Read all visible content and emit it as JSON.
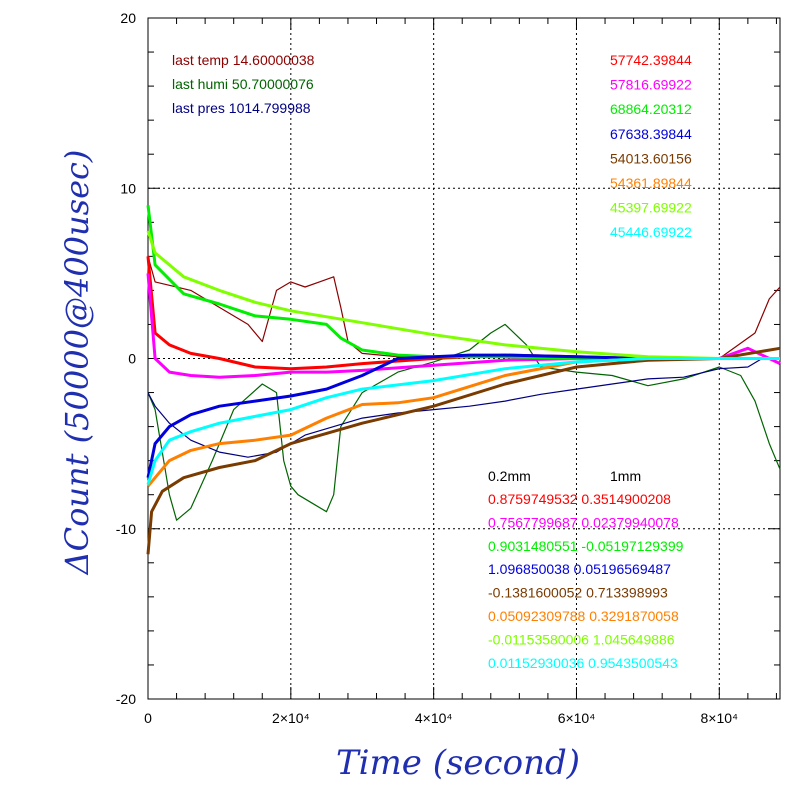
{
  "chart_data": {
    "type": "line",
    "xlabel": "Time (second)",
    "ylabel": "ΔCount (50000@400usec)",
    "xlim": [
      0,
      88500
    ],
    "ylim": [
      -20,
      20
    ],
    "x_ticks": [
      {
        "value": 0,
        "label": "0"
      },
      {
        "value": 20000,
        "label": "2×10⁴"
      },
      {
        "value": 40000,
        "label": "4×10⁴"
      },
      {
        "value": 60000,
        "label": "6×10⁴"
      },
      {
        "value": 80000,
        "label": "8×10⁴"
      }
    ],
    "y_ticks": [
      {
        "value": -20,
        "label": "-20"
      },
      {
        "value": -10,
        "label": "-10"
      },
      {
        "value": 0,
        "label": "0"
      },
      {
        "value": 10,
        "label": "10"
      },
      {
        "value": 20,
        "label": "20"
      }
    ],
    "grid": true,
    "env_annotations": [
      {
        "text": "last temp 14.60000038",
        "color": "#8b0000"
      },
      {
        "text": "last humi 50.70000076",
        "color": "#006400"
      },
      {
        "text": "last pres 1014.799988",
        "color": "#000080"
      }
    ],
    "count_annotations": [
      {
        "text": "57742.39844",
        "color": "#ff0000"
      },
      {
        "text": "57816.69922",
        "color": "#ff00ff"
      },
      {
        "text": "68864.20312",
        "color": "#00ee00"
      },
      {
        "text": "67638.39844",
        "color": "#0000dd"
      },
      {
        "text": "54013.60156",
        "color": "#7a3b00"
      },
      {
        "text": "54361.89844",
        "color": "#ff8000"
      },
      {
        "text": "45397.69922",
        "color": "#7fff00"
      },
      {
        "text": "45446.69922",
        "color": "#00ffff"
      }
    ],
    "coef_header": [
      "0.2mm",
      "1mm"
    ],
    "coef_annotations": [
      {
        "text": "0.8759749532 0.3514900208",
        "color": "#ff0000"
      },
      {
        "text": "0.7567799687 0.02379940078",
        "color": "#ff00ff"
      },
      {
        "text": "0.9031480551 -0.05197129399",
        "color": "#00ee00"
      },
      {
        "text": "1.096850038 0.05196569487",
        "color": "#0000dd"
      },
      {
        "text": "-0.1381600052 0.713398993",
        "color": "#7a3b00"
      },
      {
        "text": "0.05092309788 0.3291870058",
        "color": "#ff8000"
      },
      {
        "text": "-0.01153580006 1.045649886",
        "color": "#7fff00"
      },
      {
        "text": "0.01152930036 0.9543500543",
        "color": "#00ffff"
      }
    ],
    "series": [
      {
        "color": "#ff0000",
        "thick": true,
        "x": [
          0,
          1000,
          3000,
          6000,
          10000,
          15000,
          20000,
          25000,
          30000,
          40000,
          50000,
          60000,
          70000,
          80000,
          88500
        ],
        "y": [
          6,
          1.5,
          0.8,
          0.3,
          0,
          -0.5,
          -0.6,
          -0.5,
          -0.3,
          0,
          0.2,
          0.1,
          0,
          0,
          0
        ]
      },
      {
        "color": "#ff00ff",
        "thick": true,
        "x": [
          0,
          1000,
          3000,
          6000,
          10000,
          15000,
          20000,
          25000,
          30000,
          40000,
          50000,
          60000,
          70000,
          80000,
          84000,
          88500
        ],
        "y": [
          5,
          0,
          -0.8,
          -1,
          -1.1,
          -1,
          -0.8,
          -0.8,
          -0.7,
          -0.4,
          -0.1,
          0,
          0,
          0,
          0.6,
          -0.3
        ]
      },
      {
        "color": "#00ee00",
        "thick": true,
        "x": [
          0,
          1000,
          5000,
          10000,
          15000,
          20000,
          25000,
          27000,
          30000,
          35000,
          40000,
          50000,
          60000,
          70000,
          80000,
          88500
        ],
        "y": [
          9,
          5.5,
          3.8,
          3.2,
          2.5,
          2.3,
          2,
          1.2,
          0.5,
          0.2,
          0.1,
          0.1,
          0,
          0,
          0,
          0
        ]
      },
      {
        "color": "#0000dd",
        "thick": true,
        "x": [
          0,
          1000,
          3000,
          6000,
          10000,
          15000,
          20000,
          25000,
          30000,
          35000,
          40000,
          45000,
          50000,
          60000,
          70000,
          80000,
          88500
        ],
        "y": [
          -7,
          -5,
          -4,
          -3.3,
          -2.8,
          -2.5,
          -2.2,
          -1.8,
          -1,
          0,
          0.1,
          0.2,
          0.2,
          0.1,
          0,
          0,
          0
        ]
      },
      {
        "color": "#7a3b00",
        "thick": true,
        "x": [
          0,
          500,
          2000,
          5000,
          10000,
          15000,
          20000,
          25000,
          30000,
          40000,
          50000,
          60000,
          70000,
          80000,
          88500
        ],
        "y": [
          -11.5,
          -9,
          -7.8,
          -7,
          -6.4,
          -6,
          -5,
          -4.4,
          -3.8,
          -2.8,
          -1.5,
          -0.5,
          -0.1,
          0,
          0.6
        ]
      },
      {
        "color": "#ff8000",
        "thick": true,
        "x": [
          0,
          1000,
          3000,
          6000,
          10000,
          15000,
          20000,
          25000,
          30000,
          35000,
          40000,
          50000,
          60000,
          70000,
          80000,
          88500
        ],
        "y": [
          -7.5,
          -7,
          -6,
          -5.4,
          -5,
          -4.8,
          -4.5,
          -3.5,
          -2.7,
          -2.6,
          -2.3,
          -1,
          -0.2,
          0,
          0,
          0
        ]
      },
      {
        "color": "#7fff00",
        "thick": true,
        "x": [
          0,
          1000,
          5000,
          10000,
          15000,
          20000,
          30000,
          40000,
          50000,
          60000,
          70000,
          80000,
          88500
        ],
        "y": [
          7.5,
          6.2,
          4.8,
          4,
          3.3,
          2.8,
          2.1,
          1.4,
          0.8,
          0.4,
          0.1,
          0,
          0
        ]
      },
      {
        "color": "#00ffff",
        "thick": true,
        "x": [
          0,
          1000,
          3000,
          6000,
          10000,
          15000,
          20000,
          25000,
          30000,
          40000,
          50000,
          60000,
          70000,
          80000,
          88500
        ],
        "y": [
          -7.4,
          -6,
          -4.8,
          -4.3,
          -3.8,
          -3.4,
          -3,
          -2.3,
          -1.8,
          -1.3,
          -0.6,
          -0.2,
          0,
          0,
          0
        ]
      },
      {
        "color": "#8b0000",
        "thick": false,
        "x": [
          0,
          1000,
          3000,
          6000,
          10000,
          14000,
          16000,
          18000,
          20000,
          22000,
          24000,
          26000,
          27000,
          28000,
          30000,
          35000,
          40000,
          50000,
          60000,
          70000,
          80000,
          85000,
          87000,
          88500
        ],
        "y": [
          6,
          4.5,
          4.3,
          4,
          3,
          2,
          1,
          4,
          4.5,
          4.2,
          4.5,
          4.8,
          3,
          1,
          0.3,
          0.1,
          0.1,
          0.2,
          0.1,
          0,
          0,
          1.5,
          3.5,
          4.2
        ]
      },
      {
        "color": "#006400",
        "thick": false,
        "x": [
          0,
          1000,
          3000,
          4000,
          6000,
          9000,
          12000,
          16000,
          18000,
          19000,
          20000,
          21000,
          23000,
          25000,
          26000,
          27000,
          30000,
          35000,
          40000,
          45000,
          48000,
          50000,
          53000,
          55000,
          60000,
          65000,
          70000,
          75000,
          80000,
          83000,
          85000,
          87000,
          88500
        ],
        "y": [
          -2,
          -3,
          -8,
          -9.5,
          -8.8,
          -6,
          -3,
          -1.5,
          -2,
          -6,
          -7.5,
          -8,
          -8.5,
          -9,
          -8,
          -4,
          -2,
          -0.8,
          -0.2,
          0.5,
          1.5,
          2,
          0.8,
          -0.5,
          -0.8,
          -1,
          -1.6,
          -1.2,
          -0.5,
          -1,
          -2.5,
          -5,
          -6.5
        ]
      },
      {
        "color": "#000080",
        "thick": false,
        "x": [
          0,
          1000,
          3000,
          6000,
          10000,
          14000,
          18000,
          20000,
          22000,
          26000,
          30000,
          35000,
          40000,
          45000,
          50000,
          55000,
          60000,
          65000,
          70000,
          75000,
          80000,
          84000,
          86000,
          88500
        ],
        "y": [
          -2,
          -2.8,
          -3.8,
          -4.8,
          -5.5,
          -5.8,
          -5.5,
          -5,
          -4.5,
          -4,
          -3.5,
          -3.2,
          -3,
          -2.8,
          -2.5,
          -2.1,
          -1.8,
          -1.5,
          -1.2,
          -1.1,
          -0.6,
          -0.5,
          0,
          0
        ]
      }
    ]
  }
}
